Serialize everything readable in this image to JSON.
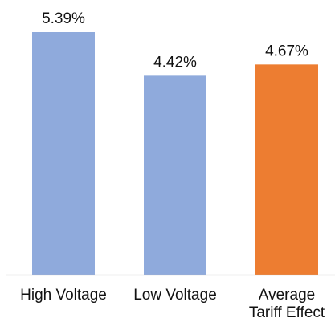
{
  "chart_data": {
    "type": "bar",
    "categories": [
      "High Voltage",
      "Low Voltage",
      "Average Tariff Effect"
    ],
    "category_labels": [
      [
        "High Voltage"
      ],
      [
        "Low Voltage"
      ],
      [
        "Average",
        "Tariff Effect"
      ]
    ],
    "values": [
      5.39,
      4.42,
      4.67
    ],
    "value_labels": [
      "5.39%",
      "4.42%",
      "4.67%"
    ],
    "unit": "%",
    "colors": [
      "#8faadc",
      "#8faadc",
      "#ed7d31"
    ],
    "ylim": [
      0,
      5.5
    ],
    "title": "",
    "xlabel": "",
    "ylabel": "",
    "grid": false,
    "legend": "none"
  }
}
